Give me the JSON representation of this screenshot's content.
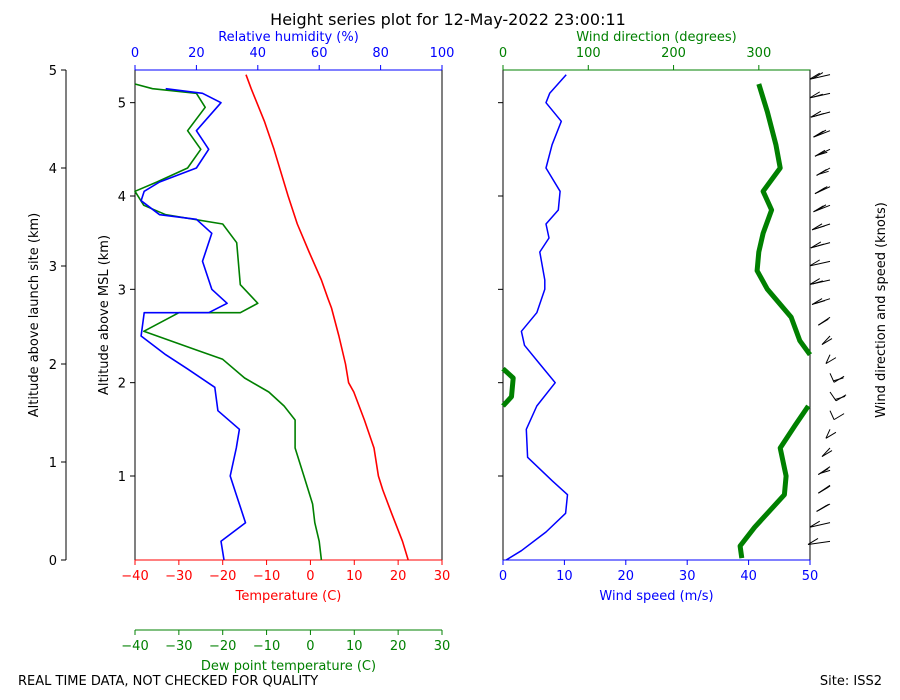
{
  "title": "Height series plot for 12-May-2022 23:00:11",
  "footer": {
    "left": "REAL TIME DATA, NOT CHECKED FOR QUALITY",
    "right": "Site: ISS2"
  },
  "colors": {
    "temp": "#ff0000",
    "dew": "#008000",
    "rh": "#0000ff",
    "wspd": "#0000ff",
    "wdir": "#008000",
    "barb": "#000000"
  },
  "chart_data": [
    {
      "id": "thermo",
      "type": "line",
      "ylabel_outer": "Altitude above launch site (km)",
      "ylabel_inner": "Altitude above MSL (km)",
      "yticks_outer": [
        "0",
        "1",
        "2",
        "3",
        "4",
        "5"
      ],
      "yticks_inner": [
        "1",
        "2",
        "3",
        "4",
        "5"
      ],
      "ylim_msl_km": [
        0.1,
        5.35
      ],
      "temp_axis": {
        "label": "Temperature (C)",
        "ticks": [
          "−40",
          "−30",
          "−20",
          "−10",
          "0",
          "10",
          "20",
          "30"
        ],
        "range": [
          -40,
          30
        ]
      },
      "dew_axis": {
        "label": "Dew point temperature (C)",
        "ticks": [
          "−40",
          "−30",
          "−20",
          "−10",
          "0",
          "10",
          "20",
          "30"
        ],
        "range": [
          -40,
          30
        ]
      },
      "rh_axis": {
        "label": "Relative humidity (%)",
        "ticks": [
          "0",
          "20",
          "40",
          "60",
          "80",
          "100"
        ],
        "range": [
          0,
          100
        ]
      },
      "series": [
        {
          "name": "Temperature",
          "key": "temp",
          "points": [
            [
              22.3,
              0.1
            ],
            [
              21.0,
              0.3
            ],
            [
              18.5,
              0.6
            ],
            [
              16.5,
              0.85
            ],
            [
              15.5,
              1.0
            ],
            [
              14.5,
              1.3
            ],
            [
              12.3,
              1.6
            ],
            [
              9.9,
              1.9
            ],
            [
              8.7,
              2.0
            ],
            [
              8.0,
              2.2
            ],
            [
              6.5,
              2.5
            ],
            [
              4.8,
              2.8
            ],
            [
              4.0,
              2.9
            ],
            [
              2.5,
              3.1
            ],
            [
              -0.3,
              3.4
            ],
            [
              -3.0,
              3.7
            ],
            [
              -5.1,
              4.0
            ],
            [
              -8.3,
              4.5
            ],
            [
              -10.5,
              4.8
            ],
            [
              -13.5,
              5.15
            ],
            [
              -14.7,
              5.3
            ]
          ]
        },
        {
          "name": "Dew point",
          "key": "dew",
          "points": [
            [
              2.5,
              0.1
            ],
            [
              2.0,
              0.3
            ],
            [
              1.0,
              0.5
            ],
            [
              0.5,
              0.7
            ],
            [
              -1.5,
              1.0
            ],
            [
              -3.5,
              1.3
            ],
            [
              -3.5,
              1.6
            ],
            [
              -6.0,
              1.75
            ],
            [
              -9.5,
              1.9
            ],
            [
              -15.0,
              2.05
            ],
            [
              -20.0,
              2.25
            ],
            [
              -26.0,
              2.35
            ],
            [
              -38.0,
              2.55
            ],
            [
              -30.0,
              2.75
            ],
            [
              -16.0,
              2.75
            ],
            [
              -12.0,
              2.85
            ],
            [
              -16.0,
              3.05
            ],
            [
              -16.8,
              3.5
            ],
            [
              -20.0,
              3.7
            ],
            [
              -33.0,
              3.8
            ],
            [
              -38.0,
              3.9
            ],
            [
              -40.0,
              4.05
            ],
            [
              -35.0,
              4.15
            ],
            [
              -28.0,
              4.3
            ],
            [
              -25.0,
              4.5
            ],
            [
              -28.0,
              4.7
            ],
            [
              -24.0,
              4.95
            ],
            [
              -26.0,
              5.1
            ],
            [
              -36.0,
              5.15
            ],
            [
              -40.0,
              5.2
            ]
          ]
        },
        {
          "name": "Relative humidity",
          "key": "rh",
          "points": [
            [
              29,
              0.1
            ],
            [
              28,
              0.3
            ],
            [
              36,
              0.5
            ],
            [
              33,
              0.8
            ],
            [
              31,
              1.0
            ],
            [
              33,
              1.3
            ],
            [
              34,
              1.5
            ],
            [
              27,
              1.7
            ],
            [
              26,
              1.95
            ],
            [
              17,
              2.15
            ],
            [
              10,
              2.3
            ],
            [
              2,
              2.5
            ],
            [
              3,
              2.75
            ],
            [
              20,
              2.75
            ],
            [
              24,
              2.75
            ],
            [
              30,
              2.85
            ],
            [
              25,
              3.0
            ],
            [
              22,
              3.3
            ],
            [
              25,
              3.6
            ],
            [
              20,
              3.75
            ],
            [
              8,
              3.8
            ],
            [
              2,
              3.95
            ],
            [
              3,
              4.05
            ],
            [
              8,
              4.15
            ],
            [
              20,
              4.3
            ],
            [
              24,
              4.5
            ],
            [
              20,
              4.7
            ],
            [
              28,
              5.0
            ],
            [
              22,
              5.1
            ],
            [
              10,
              5.15
            ]
          ]
        }
      ]
    },
    {
      "id": "wind",
      "type": "line",
      "wspd_axis": {
        "label": "Wind speed (m/s)",
        "ticks": [
          "0",
          "10",
          "20",
          "30",
          "40",
          "50"
        ],
        "range": [
          0,
          50
        ]
      },
      "wdir_axis": {
        "label": "Wind direction (degrees)",
        "ticks": [
          "0",
          "100",
          "200",
          "300"
        ],
        "range": [
          0,
          360
        ]
      },
      "side_label": "Wind direction and speed (knots)",
      "series": [
        {
          "name": "Wind speed",
          "key": "wspd",
          "width": 1.5,
          "points": [
            [
              0.5,
              0.1
            ],
            [
              3.0,
              0.2
            ],
            [
              7.0,
              0.4
            ],
            [
              10.2,
              0.6
            ],
            [
              10.5,
              0.8
            ],
            [
              8.0,
              0.95
            ],
            [
              4.0,
              1.2
            ],
            [
              3.8,
              1.5
            ],
            [
              5.5,
              1.75
            ],
            [
              8.5,
              2.0
            ],
            [
              6.0,
              2.2
            ],
            [
              3.5,
              2.4
            ],
            [
              3.0,
              2.55
            ],
            [
              5.5,
              2.75
            ],
            [
              6.8,
              3.0
            ],
            [
              6.8,
              3.1
            ],
            [
              6.0,
              3.4
            ],
            [
              7.5,
              3.55
            ],
            [
              7.0,
              3.7
            ],
            [
              9.0,
              3.85
            ],
            [
              9.3,
              4.05
            ],
            [
              7.0,
              4.3
            ],
            [
              8.0,
              4.55
            ],
            [
              9.5,
              4.8
            ],
            [
              7.0,
              5.0
            ],
            [
              7.6,
              5.1
            ],
            [
              10.3,
              5.3
            ]
          ]
        },
        {
          "name": "Wind direction",
          "key": "wdir",
          "width": 5,
          "points": [
            [
              280,
              0.12
            ],
            [
              278,
              0.25
            ],
            [
              295,
              0.45
            ],
            [
              330,
              0.8
            ],
            [
              332,
              1.0
            ],
            [
              325,
              1.3
            ],
            [
              343,
              1.55
            ],
            [
              358,
              1.75
            ],
            [
              null,
              1.8
            ],
            [
              0,
              1.75
            ],
            [
              10,
              1.85
            ],
            [
              12,
              2.05
            ],
            [
              0,
              2.15
            ],
            [
              null,
              2.2
            ],
            [
              360,
              2.3
            ],
            [
              348,
              2.45
            ],
            [
              338,
              2.7
            ],
            [
              310,
              3.0
            ],
            [
              298,
              3.2
            ],
            [
              300,
              3.4
            ],
            [
              305,
              3.6
            ],
            [
              315,
              3.85
            ],
            [
              305,
              4.05
            ],
            [
              325,
              4.3
            ],
            [
              320,
              4.55
            ],
            [
              310,
              4.9
            ],
            [
              300,
              5.2
            ]
          ]
        }
      ],
      "barbs": [
        {
          "alt": 0.3,
          "dir": 290,
          "spd_kt": 8
        },
        {
          "alt": 0.5,
          "dir": 300,
          "spd_kt": 12
        },
        {
          "alt": 0.7,
          "dir": 325,
          "spd_kt": 18
        },
        {
          "alt": 0.9,
          "dir": 330,
          "spd_kt": 20
        },
        {
          "alt": 1.1,
          "dir": 330,
          "spd_kt": 16
        },
        {
          "alt": 1.3,
          "dir": 340,
          "spd_kt": 12
        },
        {
          "alt": 1.5,
          "dir": 350,
          "spd_kt": 8
        },
        {
          "alt": 1.7,
          "dir": 10,
          "spd_kt": 10
        },
        {
          "alt": 1.9,
          "dir": 15,
          "spd_kt": 16
        },
        {
          "alt": 2.1,
          "dir": 10,
          "spd_kt": 14
        },
        {
          "alt": 2.3,
          "dir": 350,
          "spd_kt": 10
        },
        {
          "alt": 2.5,
          "dir": 340,
          "spd_kt": 8
        },
        {
          "alt": 2.7,
          "dir": 330,
          "spd_kt": 10
        },
        {
          "alt": 2.9,
          "dir": 310,
          "spd_kt": 14
        },
        {
          "alt": 3.1,
          "dir": 300,
          "spd_kt": 14
        },
        {
          "alt": 3.3,
          "dir": 300,
          "spd_kt": 12
        },
        {
          "alt": 3.5,
          "dir": 305,
          "spd_kt": 14
        },
        {
          "alt": 3.7,
          "dir": 310,
          "spd_kt": 16
        },
        {
          "alt": 3.9,
          "dir": 315,
          "spd_kt": 18
        },
        {
          "alt": 4.1,
          "dir": 320,
          "spd_kt": 18
        },
        {
          "alt": 4.3,
          "dir": 325,
          "spd_kt": 14
        },
        {
          "alt": 4.5,
          "dir": 320,
          "spd_kt": 16
        },
        {
          "alt": 4.7,
          "dir": 315,
          "spd_kt": 18
        },
        {
          "alt": 4.9,
          "dir": 305,
          "spd_kt": 14
        },
        {
          "alt": 5.1,
          "dir": 300,
          "spd_kt": 16
        },
        {
          "alt": 5.3,
          "dir": 300,
          "spd_kt": 20
        }
      ]
    }
  ]
}
